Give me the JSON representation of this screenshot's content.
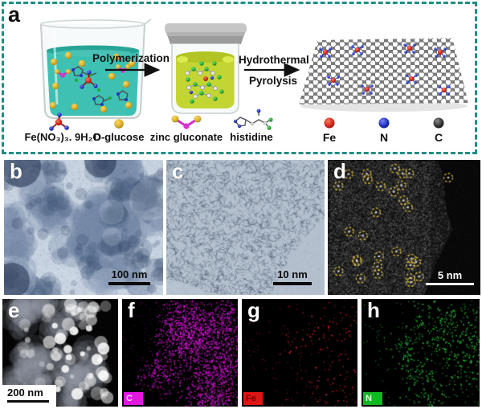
{
  "figure": {
    "panel_letters": [
      "a",
      "b",
      "c",
      "d",
      "e",
      "f",
      "g",
      "h"
    ]
  },
  "panel_a": {
    "label": "a",
    "border_color": "#1e8e85",
    "step1_label": "Polymerization",
    "step2_line1": "Hydrothermal",
    "step2_line2": "Pyrolysis",
    "reagents": [
      {
        "name": "Fe(NO₃)₃. 9H₂O",
        "icon": "iron-nitrate-molecule-icon"
      },
      {
        "name": "D-glucose",
        "icon": "glucose-sphere-icon"
      },
      {
        "name": "zinc gluconate",
        "icon": "zinc-gluconate-molecule-icon"
      },
      {
        "name": "histidine",
        "icon": "histidine-molecule-icon"
      }
    ],
    "atom_legend": [
      {
        "symbol": "Fe",
        "color": "#cc2020"
      },
      {
        "symbol": "N",
        "color": "#2433c4"
      },
      {
        "symbol": "C",
        "color": "#2e2e2e"
      }
    ],
    "beaker_liquid_color": "#3ec0b2",
    "jar_liquid_color": "#c3d532"
  },
  "panel_b": {
    "label": "b",
    "scale_bar": "100 nm"
  },
  "panel_c": {
    "label": "c",
    "scale_bar": "10 nm"
  },
  "panel_d": {
    "label": "d",
    "scale_bar": "5 nm",
    "marker_color": "#e8c642"
  },
  "panel_e": {
    "label": "e",
    "scale_bar": "200 nm"
  },
  "panel_f": {
    "label": "f",
    "element_tag": "C",
    "tag_color": "#e316e3"
  },
  "panel_g": {
    "label": "g",
    "element_tag": "Fe",
    "tag_color": "#e01414"
  },
  "panel_h": {
    "label": "h",
    "element_tag": "N",
    "tag_color": "#12b822"
  }
}
